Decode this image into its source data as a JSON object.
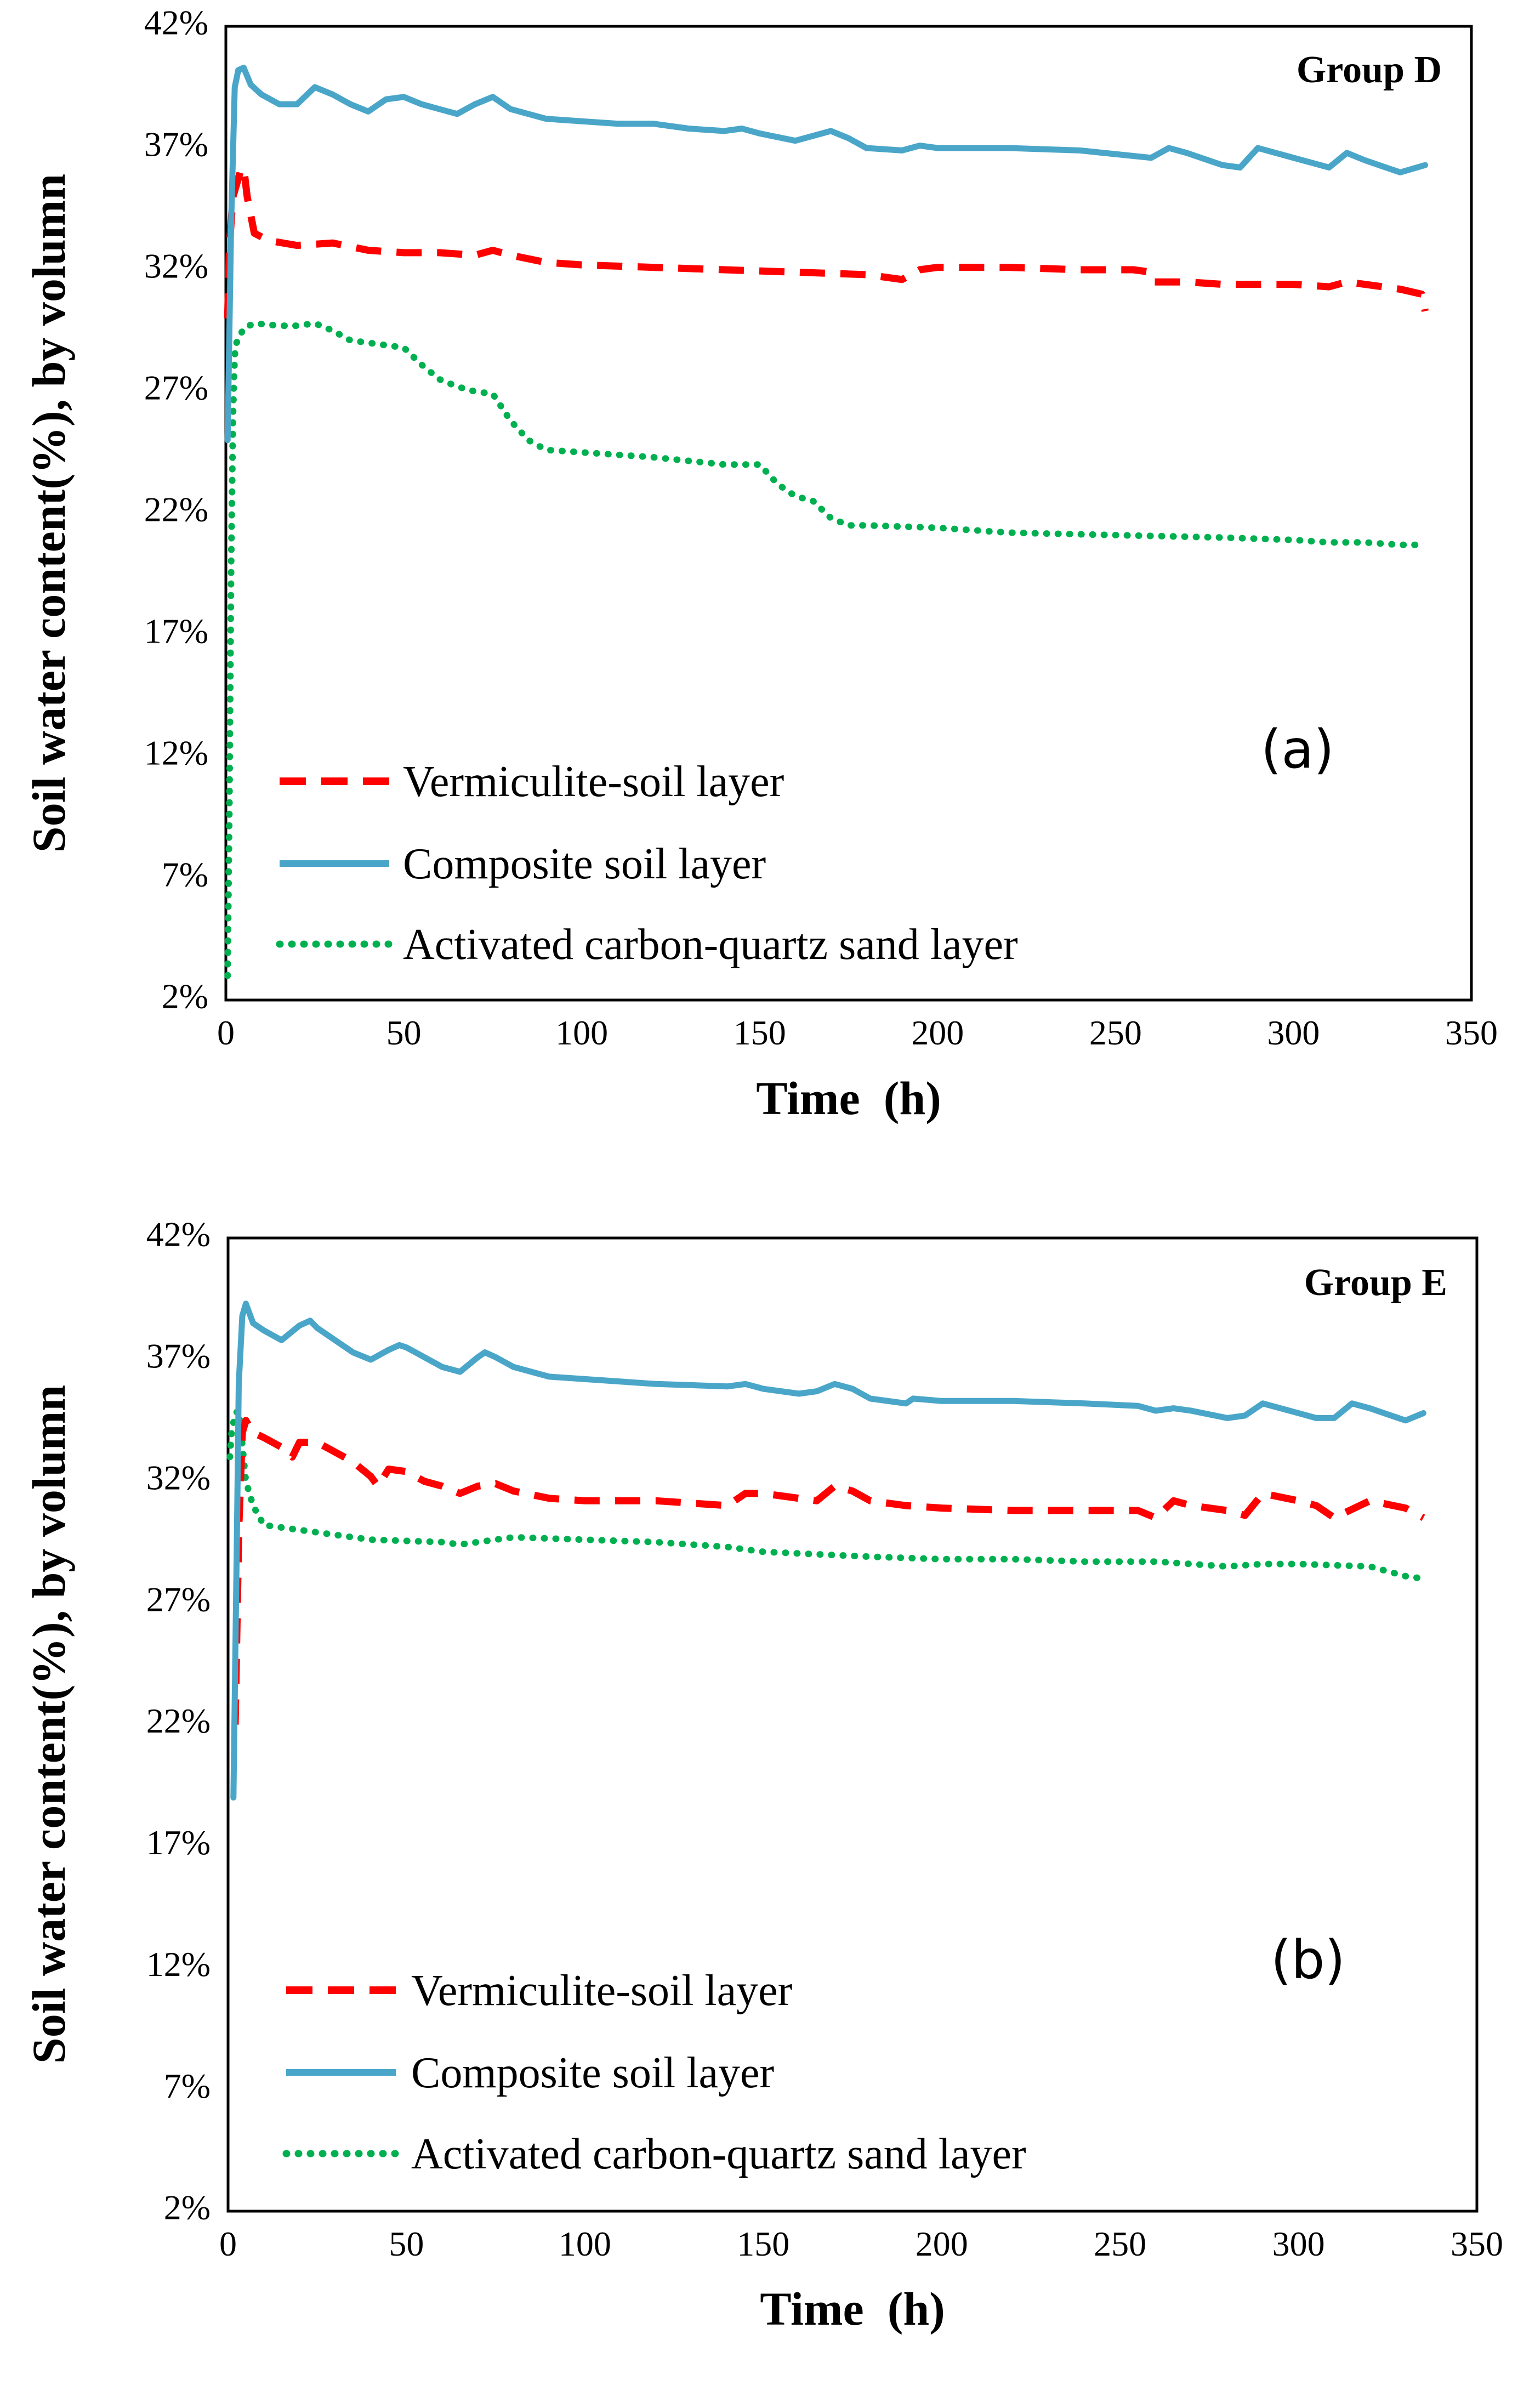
{
  "colors": {
    "vermiculite": "#ff0000",
    "composite": "#4aa6c8",
    "activated": "#00b050"
  },
  "chart_data": [
    {
      "type": "line",
      "group_label": "Group D",
      "panel_label": "(a)",
      "xlabel": "Time  (h)",
      "ylabel": "Soil water content(%), by volumn",
      "xlim": [
        0,
        350
      ],
      "ylim": [
        2,
        42
      ],
      "x_ticks": [
        "0",
        "50",
        "100",
        "150",
        "200",
        "250",
        "300",
        "350"
      ],
      "y_ticks": [
        "2%",
        "7%",
        "12%",
        "17%",
        "22%",
        "27%",
        "32%",
        "37%",
        "42%"
      ],
      "series": [
        {
          "name": "Vermiculite-soil layer",
          "style": "dashed",
          "x": [
            0.5,
            1,
            2,
            3,
            4,
            5,
            6,
            8,
            12,
            20,
            30,
            40,
            50,
            60,
            70,
            75,
            80,
            90,
            100,
            120,
            140,
            160,
            180,
            190,
            195,
            200,
            220,
            240,
            255,
            260,
            261,
            270,
            280,
            290,
            300,
            310,
            315,
            320,
            330,
            336,
            337
          ],
          "values": [
            30.0,
            33.0,
            35.0,
            35.5,
            36.0,
            36.2,
            35.0,
            33.5,
            33.2,
            33.0,
            33.1,
            32.8,
            32.7,
            32.7,
            32.6,
            32.8,
            32.6,
            32.3,
            32.2,
            32.1,
            32.0,
            31.9,
            31.8,
            31.6,
            32.0,
            32.1,
            32.1,
            32.0,
            32.0,
            31.9,
            31.5,
            31.5,
            31.4,
            31.4,
            31.4,
            31.3,
            31.5,
            31.4,
            31.2,
            31.0,
            30.3
          ]
        },
        {
          "name": "Composite soil layer",
          "style": "solid",
          "x": [
            0.5,
            1.5,
            2.5,
            3.5,
            5,
            7,
            10,
            15,
            20,
            25,
            30,
            35,
            40,
            45,
            50,
            55,
            60,
            65,
            70,
            75,
            80,
            90,
            100,
            110,
            120,
            130,
            140,
            145,
            150,
            160,
            165,
            170,
            175,
            180,
            190,
            195,
            200,
            220,
            240,
            260,
            265,
            270,
            280,
            285,
            290,
            295,
            300,
            310,
            315,
            320,
            330,
            337
          ],
          "values": [
            25.0,
            34.0,
            39.5,
            40.2,
            40.3,
            39.6,
            39.2,
            38.8,
            38.8,
            39.5,
            39.2,
            38.8,
            38.5,
            39.0,
            39.1,
            38.8,
            38.6,
            38.4,
            38.8,
            39.1,
            38.6,
            38.2,
            38.1,
            38.0,
            38.0,
            37.8,
            37.7,
            37.8,
            37.6,
            37.3,
            37.5,
            37.7,
            37.4,
            37.0,
            36.9,
            37.1,
            37.0,
            37.0,
            36.9,
            36.6,
            37.0,
            36.8,
            36.3,
            36.2,
            37.0,
            36.8,
            36.6,
            36.2,
            36.8,
            36.5,
            36.0,
            36.3
          ]
        },
        {
          "name": "Activated carbon-quartz sand layer",
          "style": "dotted",
          "x": [
            0.5,
            1,
            1.5,
            2,
            2.5,
            3,
            4,
            5,
            8,
            15,
            20,
            25,
            30,
            35,
            40,
            50,
            55,
            60,
            65,
            70,
            75,
            80,
            85,
            90,
            100,
            120,
            140,
            150,
            155,
            160,
            165,
            170,
            175,
            180,
            200,
            220,
            250,
            280,
            300,
            310,
            320,
            330,
            335
          ],
          "values": [
            3.0,
            10.0,
            20.0,
            26.0,
            28.5,
            29.0,
            29.3,
            29.6,
            29.8,
            29.7,
            29.7,
            29.8,
            29.5,
            29.1,
            29.0,
            28.8,
            28.1,
            27.5,
            27.2,
            27.0,
            26.9,
            25.8,
            25.0,
            24.6,
            24.5,
            24.3,
            24.0,
            24.0,
            23.2,
            22.7,
            22.5,
            21.8,
            21.5,
            21.5,
            21.4,
            21.2,
            21.1,
            21.0,
            20.9,
            20.8,
            20.8,
            20.7,
            20.7
          ]
        }
      ]
    },
    {
      "type": "line",
      "group_label": "Group E",
      "panel_label": "(b)",
      "xlabel": "Time  (h)",
      "ylabel": "Soil water content(%), by volumn",
      "xlim": [
        0,
        350
      ],
      "ylim": [
        2,
        42
      ],
      "x_ticks": [
        "0",
        "50",
        "100",
        "150",
        "200",
        "250",
        "300",
        "350"
      ],
      "y_ticks": [
        "2%",
        "7%",
        "12%",
        "17%",
        "22%",
        "27%",
        "32%",
        "37%",
        "42%"
      ],
      "series": [
        {
          "name": "Vermiculite-soil layer",
          "style": "dashed",
          "x": [
            2,
            3,
            4,
            5,
            7,
            10,
            15,
            18,
            20,
            25,
            30,
            35,
            40,
            42,
            45,
            50,
            55,
            60,
            65,
            70,
            75,
            80,
            90,
            100,
            120,
            140,
            145,
            150,
            160,
            165,
            170,
            175,
            180,
            190,
            200,
            220,
            240,
            255,
            260,
            265,
            270,
            280,
            285,
            290,
            300,
            305,
            310,
            320,
            330,
            335
          ],
          "values": [
            22.0,
            30.0,
            34.0,
            34.5,
            34.0,
            33.8,
            33.4,
            33.0,
            33.6,
            33.6,
            33.2,
            32.8,
            32.2,
            31.8,
            32.5,
            32.4,
            32.0,
            31.8,
            31.5,
            31.8,
            31.9,
            31.6,
            31.3,
            31.2,
            31.2,
            31.0,
            31.5,
            31.5,
            31.3,
            31.2,
            31.8,
            31.6,
            31.2,
            31.0,
            30.9,
            30.8,
            30.8,
            30.8,
            30.5,
            31.2,
            31.0,
            30.8,
            30.6,
            31.5,
            31.2,
            31.0,
            30.5,
            31.2,
            30.9,
            30.5
          ]
        },
        {
          "name": "Composite soil layer",
          "style": "solid",
          "x": [
            1.5,
            2.5,
            3,
            4,
            5,
            7,
            10,
            15,
            20,
            23,
            25,
            30,
            35,
            40,
            45,
            48,
            50,
            55,
            60,
            65,
            70,
            72,
            75,
            80,
            90,
            100,
            120,
            140,
            145,
            150,
            160,
            165,
            170,
            175,
            180,
            190,
            192,
            200,
            220,
            240,
            255,
            260,
            265,
            270,
            280,
            285,
            290,
            300,
            305,
            310,
            315,
            320,
            330,
            335
          ],
          "values": [
            19.0,
            30.0,
            36.0,
            38.8,
            39.3,
            38.5,
            38.2,
            37.8,
            38.4,
            38.6,
            38.3,
            37.8,
            37.3,
            37.0,
            37.4,
            37.6,
            37.5,
            37.1,
            36.7,
            36.5,
            37.1,
            37.3,
            37.1,
            36.7,
            36.3,
            36.2,
            36.0,
            35.9,
            36.0,
            35.8,
            35.6,
            35.7,
            36.0,
            35.8,
            35.4,
            35.2,
            35.4,
            35.3,
            35.3,
            35.2,
            35.1,
            34.9,
            35.0,
            34.9,
            34.6,
            34.7,
            35.2,
            34.8,
            34.6,
            34.6,
            35.2,
            35.0,
            34.5,
            34.8
          ]
        },
        {
          "name": "Activated carbon-quartz sand layer",
          "style": "dotted",
          "x": [
            0.5,
            1,
            2,
            3,
            4,
            5,
            7,
            10,
            20,
            40,
            60,
            65,
            80,
            100,
            120,
            140,
            150,
            180,
            200,
            220,
            240,
            260,
            280,
            290,
            300,
            320,
            330,
            335
          ],
          "values": [
            33.0,
            34.0,
            34.8,
            34.9,
            33.5,
            32.0,
            31.0,
            30.2,
            30.0,
            29.6,
            29.5,
            29.4,
            29.7,
            29.6,
            29.5,
            29.3,
            29.1,
            28.9,
            28.8,
            28.8,
            28.7,
            28.7,
            28.5,
            28.6,
            28.6,
            28.5,
            28.1,
            28.0
          ]
        }
      ]
    }
  ]
}
